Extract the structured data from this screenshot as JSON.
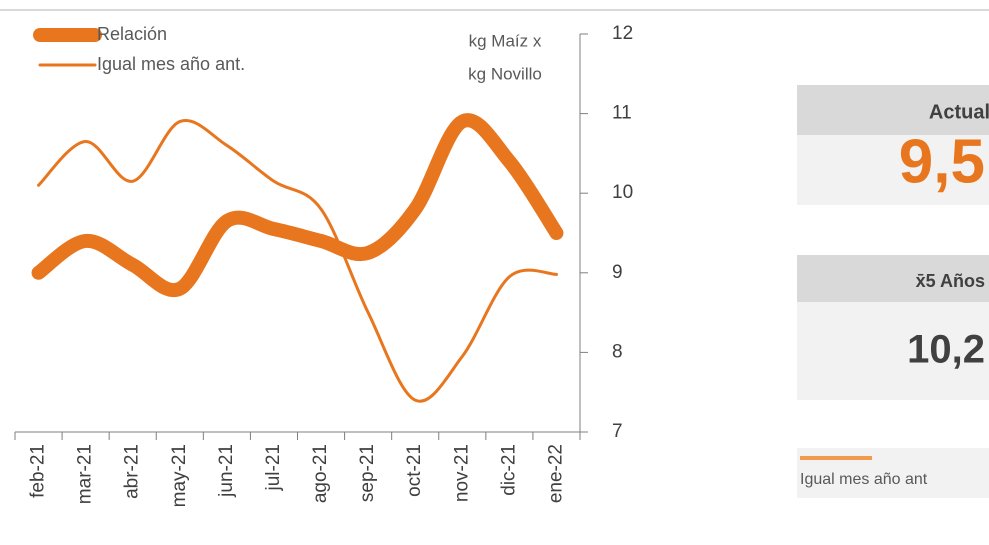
{
  "chart_data": {
    "type": "line",
    "axis_label": [
      "kg Maíz x",
      "kg Novillo"
    ],
    "categories": [
      "feb-21",
      "mar-21",
      "abr-21",
      "may-21",
      "jun-21",
      "jul-21",
      "ago-21",
      "sep-21",
      "oct-21",
      "nov-21",
      "dic-21",
      "ene-22"
    ],
    "series": [
      {
        "name": "Relación",
        "color": "#e8761e",
        "values": [
          9.0,
          9.4,
          9.1,
          8.8,
          9.65,
          9.55,
          9.4,
          9.25,
          9.8,
          10.9,
          10.4,
          9.5
        ]
      },
      {
        "name": "Igual mes año ant.",
        "color": "#e8761e",
        "values": [
          10.1,
          10.65,
          10.15,
          10.9,
          10.6,
          10.15,
          9.8,
          8.5,
          7.4,
          7.95,
          8.95,
          8.98
        ]
      }
    ],
    "ylim": [
      7,
      12
    ],
    "yticks": [
      7,
      8,
      9,
      10,
      11,
      12
    ]
  },
  "panels": [
    {
      "header": "Actual",
      "value": "9,5"
    },
    {
      "header": "x̄5 Años",
      "value": "10,2"
    }
  ],
  "panel_legend": "Igual mes año ant"
}
